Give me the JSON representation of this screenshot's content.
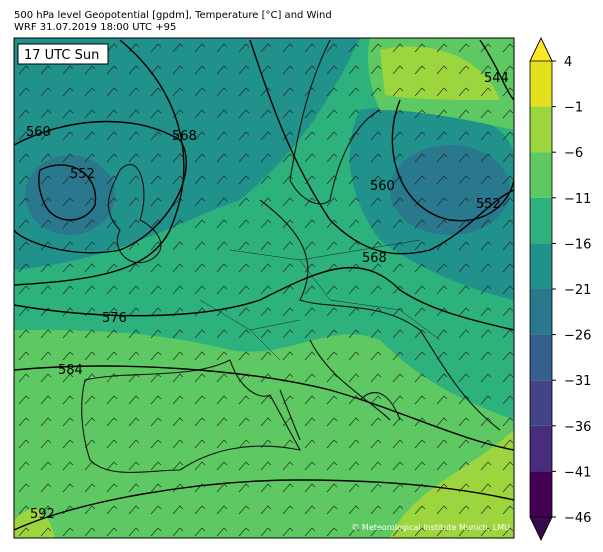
{
  "header": {
    "title": "500 hPa level Geopotential [gpdm], Temperature [°C] and Wind",
    "subtitle": "WRF 31.07.2019 18:00 UTC +95"
  },
  "map": {
    "time_label": "17 UTC Sun",
    "credit": "© Meteorological Institute Munich, LMU",
    "contour_labels": [
      "560",
      "552",
      "568",
      "576",
      "584",
      "592",
      "544",
      "560",
      "552",
      "568"
    ]
  },
  "colorbar": {
    "ticks": [
      4,
      {
        "value": -1,
        "label": "−1"
      },
      {
        "value": -6,
        "label": "−6"
      },
      {
        "value": -11,
        "label": "−11"
      },
      {
        "value": -16,
        "label": "−16"
      },
      {
        "value": -21,
        "label": "−21"
      },
      {
        "value": -26,
        "label": "−26"
      },
      {
        "value": -31,
        "label": "−31"
      },
      {
        "value": -36,
        "label": "−36"
      },
      {
        "value": -41,
        "label": "−41"
      },
      {
        "value": -46,
        "label": "−46"
      }
    ],
    "colors": [
      "#e5e01d",
      "#9dd53e",
      "#5ec962",
      "#2db27d",
      "#21918c",
      "#2a788e",
      "#355f8d",
      "#414487",
      "#472d7b",
      "#440154"
    ],
    "extend_colors": [
      "#fde725",
      "#3b0a4d"
    ]
  }
}
